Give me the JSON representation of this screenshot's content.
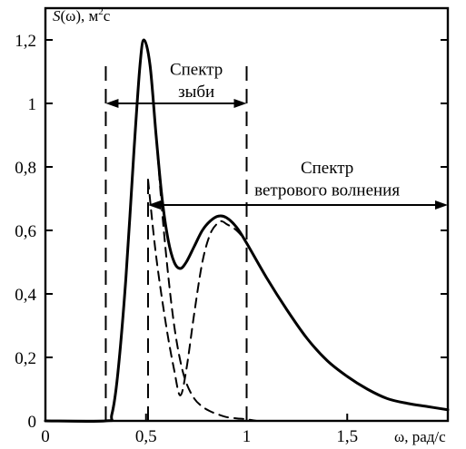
{
  "chart_data": {
    "type": "line",
    "title": "",
    "ylabel": "S(ω), м²с",
    "ylabel_parts": {
      "symbol": "S",
      "arg": "(ω), м",
      "sup": "2",
      "tail": "с"
    },
    "xlabel": "ω, рад/с",
    "xlim": [
      0,
      2.0
    ],
    "ylim": [
      0,
      1.3
    ],
    "x_ticks": [
      0,
      0.5,
      1,
      1.5
    ],
    "x_tick_labels": [
      "0",
      "0,5",
      "1",
      "1,5"
    ],
    "y_ticks": [
      0,
      0.2,
      0.4,
      0.6,
      0.8,
      1.0,
      1.2
    ],
    "y_tick_labels": [
      "0",
      "0,2",
      "0,4",
      "0,6",
      "0,8",
      "1",
      "1,2"
    ],
    "grid": false,
    "series": [
      {
        "style": "solid",
        "x": [
          0.0,
          0.3,
          0.33,
          0.36,
          0.4,
          0.44,
          0.47,
          0.49,
          0.52,
          0.55,
          0.58,
          0.61,
          0.64,
          0.67,
          0.7,
          0.74,
          0.78,
          0.82,
          0.86,
          0.9,
          0.95,
          1.0,
          1.1,
          1.2,
          1.3,
          1.4,
          1.5,
          1.6,
          1.7,
          1.8,
          1.9,
          2.0
        ],
        "y": [
          0.0,
          0.0,
          0.02,
          0.15,
          0.45,
          0.85,
          1.12,
          1.2,
          1.12,
          0.9,
          0.7,
          0.57,
          0.5,
          0.48,
          0.5,
          0.55,
          0.6,
          0.63,
          0.645,
          0.64,
          0.61,
          0.56,
          0.45,
          0.35,
          0.26,
          0.19,
          0.14,
          0.1,
          0.07,
          0.055,
          0.045,
          0.035
        ]
      },
      {
        "style": "dashed",
        "x": [
          0.33,
          0.36,
          0.4,
          0.44,
          0.47,
          0.49,
          0.52,
          0.55,
          0.58,
          0.61,
          0.64,
          0.67,
          0.7,
          0.74,
          0.78,
          0.82,
          0.86,
          0.9,
          0.95,
          1.0,
          1.05
        ],
        "y": [
          0.02,
          0.15,
          0.45,
          0.85,
          1.12,
          1.2,
          1.12,
          0.9,
          0.66,
          0.46,
          0.3,
          0.19,
          0.12,
          0.07,
          0.045,
          0.03,
          0.02,
          0.012,
          0.008,
          0.005,
          0.0
        ]
      },
      {
        "style": "dashed",
        "x": [
          0.51,
          0.55,
          0.6,
          0.64,
          0.67,
          0.7,
          0.74,
          0.78,
          0.82,
          0.86,
          0.88,
          0.9,
          0.95,
          1.0,
          1.1,
          1.2,
          1.3,
          1.4,
          1.5,
          1.6,
          1.7,
          1.8,
          1.9,
          2.0
        ],
        "y": [
          0.76,
          0.52,
          0.3,
          0.16,
          0.08,
          0.16,
          0.34,
          0.5,
          0.59,
          0.625,
          0.628,
          0.62,
          0.6,
          0.56,
          0.45,
          0.35,
          0.26,
          0.19,
          0.14,
          0.1,
          0.07,
          0.055,
          0.045,
          0.035
        ]
      }
    ],
    "reference_lines": [
      {
        "x": 0.3,
        "y_from": 0,
        "y_to": 1.14,
        "style": "dashed"
      },
      {
        "x": 0.51,
        "y_from": 0,
        "y_to": 0.76,
        "style": "dashed"
      },
      {
        "x": 1.0,
        "y_from": 0,
        "y_to": 1.14,
        "style": "dashed"
      }
    ],
    "annotations": [
      {
        "lines": [
          "Спектр",
          "зыби"
        ],
        "range_x": [
          0.3,
          1.0
        ],
        "arrow_y": 1.0,
        "text_x": 0.75,
        "text_y": [
          1.09,
          1.02
        ]
      },
      {
        "lines": [
          "Спектр",
          "ветрового волнения"
        ],
        "range_x": [
          0.51,
          2.0
        ],
        "arrow_y": 0.68,
        "text_x": 1.4,
        "text_y": [
          0.78,
          0.71
        ]
      }
    ]
  }
}
